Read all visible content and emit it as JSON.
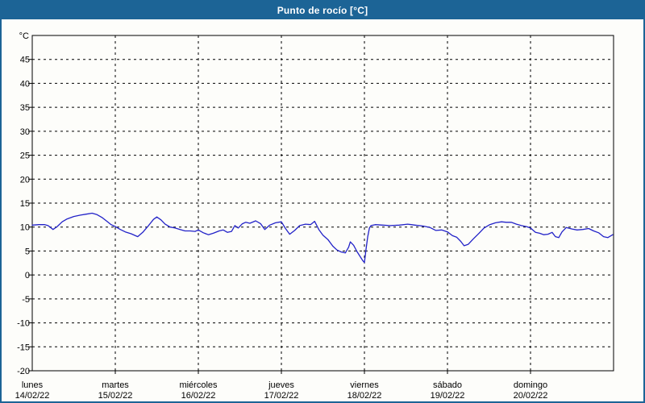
{
  "window": {
    "title": "Punto de rocío [°C]"
  },
  "colors": {
    "titlebar_bg": "#1c6496",
    "frame_border": "#1c6496",
    "line": "#2222c8",
    "grid": "#000000",
    "axis": "#000000",
    "plot_bg": "#fdfdfa",
    "title_text": "#ffffff"
  },
  "chart_data": {
    "type": "line",
    "title": "Punto de rocío [°C]",
    "y_unit_label": "°C",
    "ylim": [
      -20,
      50
    ],
    "xlim_days": [
      0,
      7
    ],
    "grid": "dashed",
    "legend": "none",
    "y_ticks": [
      45,
      40,
      35,
      30,
      25,
      20,
      15,
      10,
      5,
      0,
      -5,
      -10,
      -15,
      -20
    ],
    "x_days": [
      {
        "name": "lunes",
        "date": "14/02/22"
      },
      {
        "name": "martes",
        "date": "15/02/22"
      },
      {
        "name": "miércoles",
        "date": "16/02/22"
      },
      {
        "name": "jueves",
        "date": "17/02/22"
      },
      {
        "name": "viernes",
        "date": "18/02/22"
      },
      {
        "name": "sábado",
        "date": "19/02/22"
      },
      {
        "name": "domingo",
        "date": "20/02/22"
      }
    ],
    "series": [
      {
        "name": "Punto de rocío",
        "color": "#2222c8",
        "points": [
          [
            0.0,
            10.4
          ],
          [
            0.08,
            10.5
          ],
          [
            0.15,
            10.5
          ],
          [
            0.19,
            10.3
          ],
          [
            0.25,
            9.5
          ],
          [
            0.3,
            10.1
          ],
          [
            0.36,
            11.1
          ],
          [
            0.42,
            11.7
          ],
          [
            0.5,
            12.2
          ],
          [
            0.58,
            12.5
          ],
          [
            0.65,
            12.7
          ],
          [
            0.72,
            12.9
          ],
          [
            0.78,
            12.6
          ],
          [
            0.84,
            12.0
          ],
          [
            0.9,
            11.2
          ],
          [
            0.95,
            10.5
          ],
          [
            1.0,
            10.1
          ],
          [
            1.06,
            9.5
          ],
          [
            1.12,
            9.0
          ],
          [
            1.19,
            8.6
          ],
          [
            1.27,
            8.0
          ],
          [
            1.33,
            8.9
          ],
          [
            1.4,
            10.3
          ],
          [
            1.46,
            11.6
          ],
          [
            1.5,
            12.1
          ],
          [
            1.55,
            11.5
          ],
          [
            1.6,
            10.6
          ],
          [
            1.66,
            10.0
          ],
          [
            1.72,
            9.8
          ],
          [
            1.78,
            9.5
          ],
          [
            1.84,
            9.2
          ],
          [
            1.9,
            9.2
          ],
          [
            1.96,
            9.1
          ],
          [
            2.0,
            9.4
          ],
          [
            2.06,
            8.8
          ],
          [
            2.12,
            8.4
          ],
          [
            2.18,
            8.7
          ],
          [
            2.25,
            9.2
          ],
          [
            2.3,
            9.4
          ],
          [
            2.35,
            8.9
          ],
          [
            2.4,
            9.1
          ],
          [
            2.44,
            10.3
          ],
          [
            2.48,
            9.8
          ],
          [
            2.53,
            10.7
          ],
          [
            2.57,
            11.0
          ],
          [
            2.62,
            10.8
          ],
          [
            2.69,
            11.3
          ],
          [
            2.75,
            10.7
          ],
          [
            2.8,
            9.5
          ],
          [
            2.86,
            10.4
          ],
          [
            2.93,
            10.9
          ],
          [
            3.0,
            11.1
          ],
          [
            3.05,
            9.7
          ],
          [
            3.1,
            8.5
          ],
          [
            3.16,
            9.3
          ],
          [
            3.22,
            10.3
          ],
          [
            3.29,
            10.6
          ],
          [
            3.35,
            10.5
          ],
          [
            3.4,
            11.2
          ],
          [
            3.45,
            9.5
          ],
          [
            3.5,
            8.3
          ],
          [
            3.56,
            7.4
          ],
          [
            3.62,
            6.0
          ],
          [
            3.67,
            5.2
          ],
          [
            3.72,
            4.8
          ],
          [
            3.77,
            4.6
          ],
          [
            3.81,
            5.8
          ],
          [
            3.83,
            6.9
          ],
          [
            3.87,
            6.2
          ],
          [
            3.91,
            4.9
          ],
          [
            3.95,
            3.8
          ],
          [
            3.98,
            3.0
          ],
          [
            4.0,
            2.6
          ],
          [
            4.02,
            5.5
          ],
          [
            4.04,
            8.0
          ],
          [
            4.06,
            9.8
          ],
          [
            4.08,
            10.3
          ],
          [
            4.13,
            10.5
          ],
          [
            4.22,
            10.4
          ],
          [
            4.31,
            10.3
          ],
          [
            4.42,
            10.4
          ],
          [
            4.52,
            10.6
          ],
          [
            4.61,
            10.4
          ],
          [
            4.71,
            10.2
          ],
          [
            4.79,
            9.9
          ],
          [
            4.86,
            9.3
          ],
          [
            4.93,
            9.4
          ],
          [
            5.0,
            9.0
          ],
          [
            5.06,
            8.2
          ],
          [
            5.11,
            7.9
          ],
          [
            5.16,
            7.0
          ],
          [
            5.2,
            6.1
          ],
          [
            5.25,
            6.4
          ],
          [
            5.31,
            7.5
          ],
          [
            5.38,
            8.7
          ],
          [
            5.44,
            9.8
          ],
          [
            5.51,
            10.5
          ],
          [
            5.58,
            10.9
          ],
          [
            5.65,
            11.1
          ],
          [
            5.71,
            11.0
          ],
          [
            5.77,
            11.0
          ],
          [
            5.83,
            10.6
          ],
          [
            5.89,
            10.3
          ],
          [
            5.95,
            10.1
          ],
          [
            6.0,
            9.8
          ],
          [
            6.06,
            8.9
          ],
          [
            6.11,
            8.7
          ],
          [
            6.16,
            8.4
          ],
          [
            6.21,
            8.5
          ],
          [
            6.26,
            8.9
          ],
          [
            6.3,
            8.0
          ],
          [
            6.34,
            7.8
          ],
          [
            6.38,
            9.0
          ],
          [
            6.43,
            9.9
          ],
          [
            6.5,
            9.6
          ],
          [
            6.56,
            9.4
          ],
          [
            6.63,
            9.5
          ],
          [
            6.7,
            9.7
          ],
          [
            6.76,
            9.2
          ],
          [
            6.82,
            8.8
          ],
          [
            6.88,
            8.0
          ],
          [
            6.93,
            7.8
          ],
          [
            6.99,
            8.4
          ]
        ]
      }
    ]
  }
}
